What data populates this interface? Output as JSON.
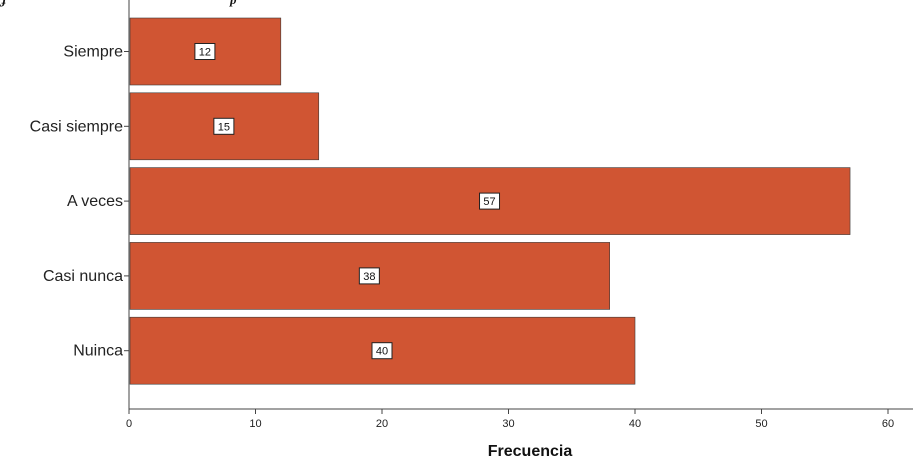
{
  "chart_data": {
    "type": "bar",
    "orientation": "horizontal",
    "categories": [
      "Siempre",
      "Casi siempre",
      "A veces",
      "Casi nunca",
      "Nuinca"
    ],
    "values": [
      12,
      15,
      57,
      38,
      40
    ],
    "data_labels": [
      "12",
      "15",
      "57",
      "38",
      "40"
    ],
    "xlabel": "Frecuencia",
    "ylabel": "",
    "xlim": [
      0,
      62
    ],
    "xticks": [
      0,
      10,
      20,
      30,
      40,
      50,
      60
    ],
    "xtick_labels": [
      "0",
      "10",
      "20",
      "30",
      "40",
      "50",
      "60"
    ],
    "grid": false,
    "bar_color": "#d05533"
  }
}
